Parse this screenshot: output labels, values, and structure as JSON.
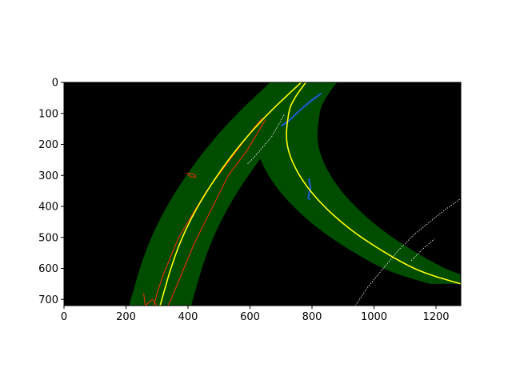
{
  "chart_data": {
    "type": "image_plot",
    "xlim": [
      0,
      1280
    ],
    "ylim": [
      720,
      0
    ],
    "x_ticks": [
      0,
      200,
      400,
      600,
      800,
      1000,
      1200
    ],
    "y_ticks": [
      0,
      100,
      200,
      300,
      400,
      500,
      600,
      700
    ],
    "colors": {
      "background": "#000000",
      "lane_window": "#004d00",
      "fit_line": "#ffff00",
      "left_lane_pixels": "#ff2a00",
      "right_lane_pixels": "#1e5ad8",
      "noise_pixels": "#ffffff"
    },
    "lane_half_width": 100,
    "left_lane_fit": [
      {
        "y": 0,
        "x": 765
      },
      {
        "y": 100,
        "x": 660
      },
      {
        "y": 200,
        "x": 570
      },
      {
        "y": 300,
        "x": 495
      },
      {
        "y": 400,
        "x": 432
      },
      {
        "y": 500,
        "x": 382
      },
      {
        "y": 600,
        "x": 345
      },
      {
        "y": 720,
        "x": 310
      }
    ],
    "right_lane_fit": [
      {
        "y": 0,
        "x": 780
      },
      {
        "y": 50,
        "x": 745
      },
      {
        "y": 100,
        "x": 725
      },
      {
        "y": 200,
        "x": 720
      },
      {
        "y": 300,
        "x": 760
      },
      {
        "y": 400,
        "x": 840
      },
      {
        "y": 500,
        "x": 960
      },
      {
        "y": 600,
        "x": 1130
      },
      {
        "y": 650,
        "x": 1280
      }
    ],
    "left_lane_pixels": [
      [
        [
          640,
          115
        ],
        [
          610,
          150
        ],
        [
          580,
          190
        ],
        [
          550,
          230
        ],
        [
          520,
          270
        ],
        [
          490,
          310
        ],
        [
          460,
          350
        ],
        [
          430,
          400
        ],
        [
          400,
          450
        ],
        [
          370,
          500
        ],
        [
          345,
          560
        ],
        [
          320,
          620
        ],
        [
          300,
          680
        ],
        [
          290,
          720
        ]
      ],
      [
        [
          650,
          120
        ],
        [
          620,
          170
        ],
        [
          590,
          220
        ],
        [
          560,
          260
        ],
        [
          530,
          300
        ],
        [
          510,
          340
        ],
        [
          490,
          380
        ],
        [
          470,
          420
        ],
        [
          445,
          470
        ],
        [
          420,
          520
        ],
        [
          395,
          580
        ],
        [
          370,
          640
        ],
        [
          345,
          700
        ],
        [
          335,
          720
        ]
      ],
      [
        [
          395,
          293
        ],
        [
          420,
          296
        ],
        [
          425,
          305
        ],
        [
          410,
          305
        ],
        [
          400,
          298
        ]
      ],
      [
        [
          257,
          680
        ],
        [
          262,
          720
        ],
        [
          285,
          700
        ],
        [
          300,
          720
        ]
      ]
    ],
    "right_lane_pixels": [
      [
        [
          830,
          35
        ],
        [
          790,
          65
        ],
        [
          755,
          95
        ],
        [
          725,
          125
        ],
        [
          700,
          140
        ]
      ],
      [
        [
          790,
          310
        ],
        [
          795,
          340
        ],
        [
          788,
          370
        ],
        [
          792,
          380
        ]
      ]
    ],
    "noise_pixels": [
      [
        [
          710,
          105
        ],
        [
          690,
          140
        ],
        [
          670,
          175
        ],
        [
          640,
          210
        ],
        [
          610,
          245
        ],
        [
          590,
          265
        ]
      ],
      [
        [
          940,
          720
        ],
        [
          980,
          660
        ],
        [
          1030,
          600
        ],
        [
          1080,
          540
        ],
        [
          1130,
          490
        ],
        [
          1180,
          450
        ],
        [
          1230,
          410
        ],
        [
          1280,
          375
        ]
      ],
      [
        [
          1120,
          575
        ],
        [
          1160,
          535
        ],
        [
          1195,
          505
        ]
      ]
    ]
  }
}
